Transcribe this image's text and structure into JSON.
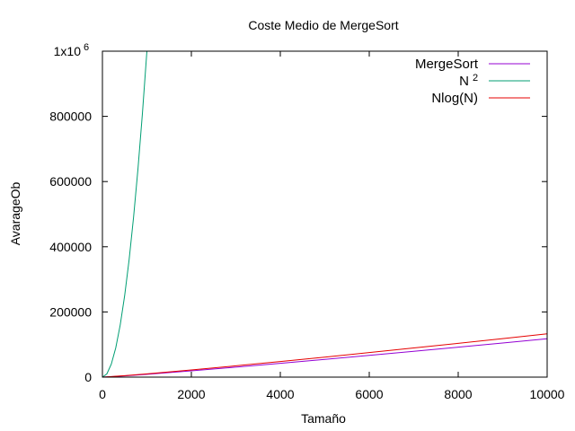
{
  "chart_data": {
    "type": "line",
    "title": "Coste Medio de MergeSort",
    "xlabel": "Tamaño",
    "ylabel": "AvarageOb",
    "xlim": [
      0,
      10000
    ],
    "ylim": [
      0,
      1000000
    ],
    "x_ticks": [
      0,
      2000,
      4000,
      6000,
      8000,
      10000
    ],
    "y_ticks": [
      0,
      200000,
      400000,
      600000,
      800000,
      1000000
    ],
    "x_tick_labels": [
      "0",
      "2000",
      "4000",
      "6000",
      "8000",
      "10000"
    ],
    "y_tick_labels": [
      "0",
      "200000",
      "400000",
      "600000",
      "800000",
      "1x10"
    ],
    "y_top_exponent": "6",
    "grid": false,
    "legend_position": "top-right",
    "series": [
      {
        "name": "MergeSort",
        "color": "#9400d3",
        "x": [
          0,
          500,
          1000,
          2000,
          3000,
          4000,
          5000,
          6000,
          7000,
          8000,
          9000,
          10000
        ],
        "y": [
          0,
          3800,
          8700,
          19400,
          30700,
          42400,
          54400,
          66700,
          79200,
          91800,
          104700,
          117600
        ]
      },
      {
        "name": "N",
        "name_superscript": "2",
        "color": "#009e73",
        "x": [
          0,
          100,
          200,
          300,
          400,
          500,
          600,
          700,
          800,
          900,
          1000
        ],
        "y": [
          0,
          10000,
          40000,
          90000,
          160000,
          250000,
          360000,
          490000,
          640000,
          810000,
          1000000
        ]
      },
      {
        "name": "Nlog(N)",
        "color": "#e50000",
        "x": [
          0,
          500,
          1000,
          2000,
          3000,
          4000,
          5000,
          6000,
          7000,
          8000,
          9000,
          10000
        ],
        "y": [
          0,
          4483,
          9966,
          21932,
          34652,
          47863,
          61439,
          75304,
          89412,
          103726,
          118221,
          132877
        ]
      }
    ]
  }
}
